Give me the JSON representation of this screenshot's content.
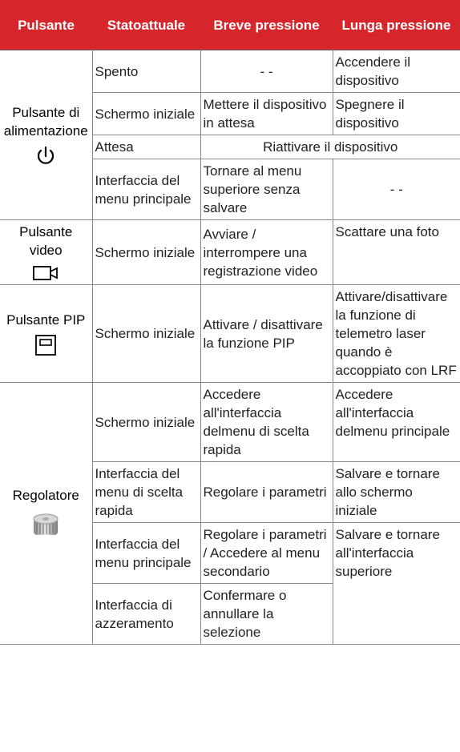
{
  "table": {
    "header": [
      "Pulsante",
      "Statoattuale",
      "Breve pressione",
      "Lunga pressione"
    ],
    "groups": [
      {
        "button": "Pulsante di alimentazione",
        "rows": [
          {
            "state": "Spento",
            "short": "- -",
            "long": "Accendere il dispositivo"
          },
          {
            "state": "Schermo iniziale",
            "short": "Mettere il dispositivo in attesa",
            "long": "Spegnere il dispositivo"
          },
          {
            "state": "Attesa",
            "both": "Riattivare il dispositivo"
          },
          {
            "state": "Interfaccia del menu principale",
            "short": "Tornare al menu superiore senza salvare",
            "long": "- -"
          }
        ]
      },
      {
        "button": "Pulsante video",
        "rows": [
          {
            "state": "Schermo iniziale",
            "short": "Avviare / interrompere una registrazione video",
            "long": "Scattare una foto"
          }
        ]
      },
      {
        "button": "Pulsante PIP",
        "rows": [
          {
            "state": "Schermo iniziale",
            "short": "Attivare / disattivare la funzione PIP",
            "long": "Attivare/disattivare la funzione di telemetro laser quando è accoppiato con LRF"
          }
        ]
      },
      {
        "button": "Regolatore",
        "rows": [
          {
            "state": "Schermo iniziale",
            "short": "Accedere all'interfaccia delmenu di scelta rapida",
            "long": "Accedere all'interfaccia delmenu principale"
          },
          {
            "state": "Interfaccia del menu di scelta rapida",
            "short": "Regolare i parametri",
            "long": "Salvare e tornare allo schermo iniziale"
          },
          {
            "state": "Interfaccia del menu principale",
            "short": "Regolare i parametri / Accedere al menu secondario",
            "long": "Salvare e tornare all'interfaccia superiore"
          },
          {
            "state": "Interfaccia di azzeramento",
            "short": "Confermare o annullare la selezione"
          }
        ]
      }
    ]
  }
}
